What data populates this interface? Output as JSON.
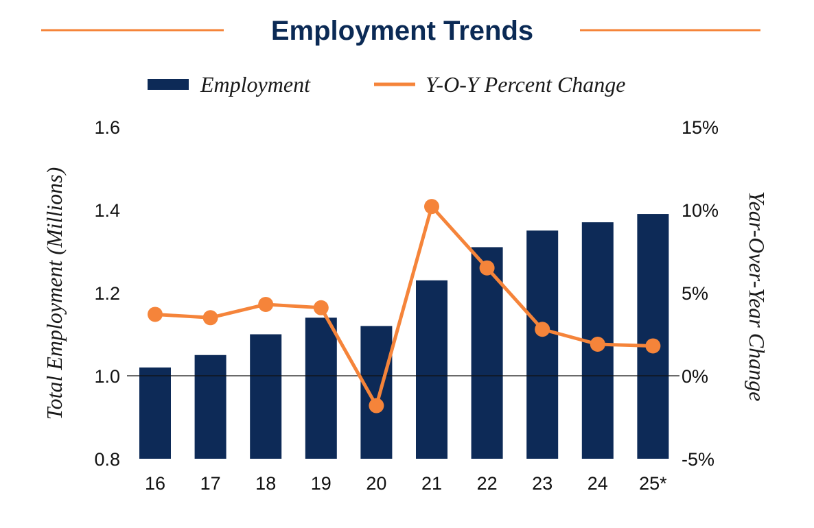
{
  "colors": {
    "title": "#0b2a55",
    "bar": "#0d2a57",
    "line": "#f5843a",
    "text": "#111111"
  },
  "chart_data": {
    "type": "bar",
    "title": "Employment Trends",
    "legend": {
      "bar_label": "Employment",
      "line_label": "Y-O-Y Percent Change",
      "placement": "top"
    },
    "categories": [
      "16",
      "17",
      "18",
      "19",
      "20",
      "21",
      "22",
      "23",
      "24",
      "25*"
    ],
    "series": [
      {
        "name": "Employment",
        "kind": "bar",
        "axis": "left",
        "values": [
          1.02,
          1.05,
          1.1,
          1.14,
          1.12,
          1.23,
          1.31,
          1.35,
          1.37,
          1.39
        ]
      },
      {
        "name": "Y-O-Y Percent Change",
        "kind": "line",
        "axis": "right",
        "values": [
          3.7,
          3.5,
          4.3,
          4.1,
          -1.8,
          10.2,
          6.5,
          2.8,
          1.9,
          1.8
        ]
      }
    ],
    "left_axis": {
      "label": "Total Employment (Millions)",
      "ylim": [
        0.8,
        1.6
      ],
      "ticks": [
        "0.8",
        "1.0",
        "1.2",
        "1.4",
        "1.6"
      ],
      "tick_values": [
        0.8,
        1.0,
        1.2,
        1.4,
        1.6
      ]
    },
    "right_axis": {
      "label": "Year-Over-Year Change",
      "ylim": [
        -5,
        15
      ],
      "ticks": [
        "-5%",
        "0%",
        "5%",
        "10%",
        "15%"
      ],
      "tick_values": [
        -5,
        0,
        5,
        10,
        15
      ]
    },
    "baseline": {
      "left_value": 1.0,
      "right_value": 0
    },
    "grid": false
  }
}
